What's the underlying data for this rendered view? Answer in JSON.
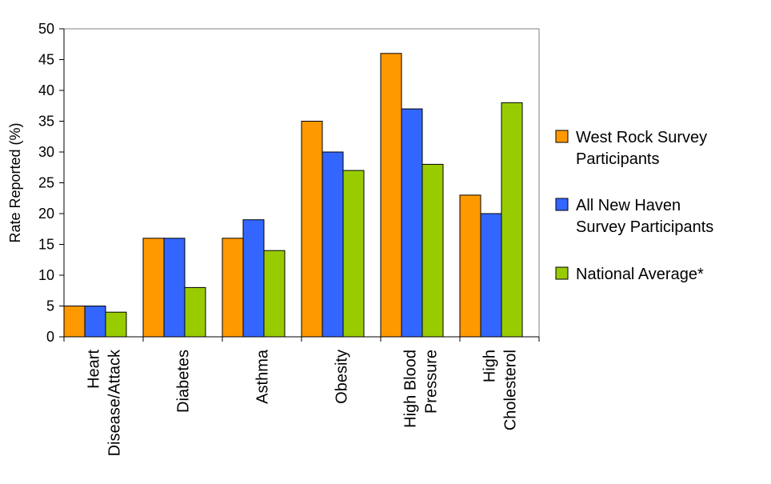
{
  "chart_data": {
    "type": "bar",
    "title": "",
    "xlabel": "",
    "ylabel": "Rate Reported (%)",
    "ylim": [
      0,
      50
    ],
    "yticks": [
      0,
      5,
      10,
      15,
      20,
      25,
      30,
      35,
      40,
      45,
      50
    ],
    "grid": false,
    "legend_position": "right",
    "categories": [
      [
        "Heart",
        "Disease/Attack"
      ],
      [
        "Diabetes"
      ],
      [
        "Asthma"
      ],
      [
        "Obesity"
      ],
      [
        "High Blood",
        "Pressure"
      ],
      [
        "High",
        "Cholesterol"
      ]
    ],
    "series": [
      {
        "name": [
          "West Rock Survey",
          "Participants"
        ],
        "color": "#ff9900",
        "values": [
          5,
          16,
          16,
          35,
          46,
          23
        ]
      },
      {
        "name": [
          "All New Haven",
          "Survey Participants"
        ],
        "color": "#3366ff",
        "values": [
          5,
          16,
          19,
          30,
          37,
          20
        ]
      },
      {
        "name": [
          "National Average*"
        ],
        "color": "#99cc00",
        "values": [
          4,
          8,
          14,
          27,
          28,
          38
        ]
      }
    ]
  }
}
